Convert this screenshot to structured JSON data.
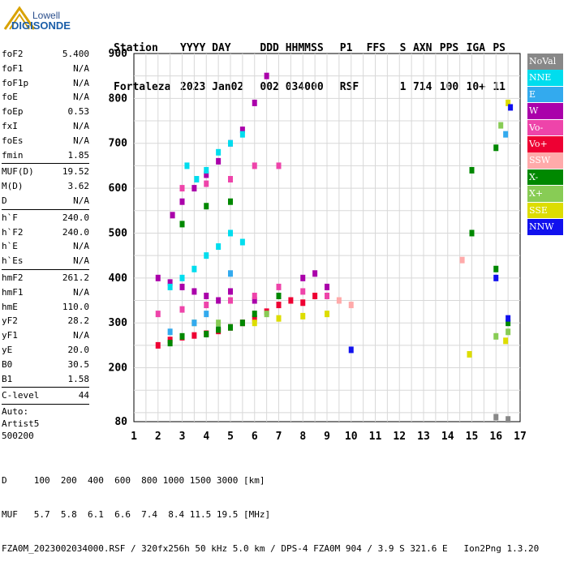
{
  "logo": {
    "line1": "Lowell",
    "line2": "DIGISONDE"
  },
  "header": {
    "row1": [
      "Station",
      "YYYY DAY",
      "DDD HHMMSS",
      "P1",
      "FFS",
      "S",
      "AXN",
      "PPS",
      "IGA",
      "PS"
    ],
    "row2": [
      "Fortaleza",
      "2023 Jan02",
      "002 034000",
      "RSF",
      "",
      "1",
      "714",
      "100",
      "10+",
      "11"
    ]
  },
  "params": {
    "group1": [
      {
        "label": "foF2",
        "value": "5.400"
      },
      {
        "label": "foF1",
        "value": "N/A"
      },
      {
        "label": "foF1p",
        "value": "N/A"
      },
      {
        "label": "foE",
        "value": "N/A"
      },
      {
        "label": "foEp",
        "value": "0.53"
      },
      {
        "label": "fxI",
        "value": "N/A"
      },
      {
        "label": "foEs",
        "value": "N/A"
      },
      {
        "label": "fmin",
        "value": "1.85"
      }
    ],
    "group2": [
      {
        "label": "MUF(D)",
        "value": "19.52"
      },
      {
        "label": "M(D)",
        "value": "3.62"
      },
      {
        "label": "D",
        "value": "N/A"
      }
    ],
    "group3": [
      {
        "label": "h`F",
        "value": "240.0"
      },
      {
        "label": "h`F2",
        "value": "240.0"
      },
      {
        "label": "h`E",
        "value": "N/A"
      },
      {
        "label": "h`Es",
        "value": "N/A"
      }
    ],
    "group4": [
      {
        "label": "hmF2",
        "value": "261.2"
      },
      {
        "label": "hmF1",
        "value": "N/A"
      },
      {
        "label": "hmE",
        "value": "110.0"
      },
      {
        "label": "yF2",
        "value": "28.2"
      },
      {
        "label": "yF1",
        "value": "N/A"
      },
      {
        "label": "yE",
        "value": "20.0"
      },
      {
        "label": "B0",
        "value": "30.5"
      },
      {
        "label": "B1",
        "value": "1.58"
      }
    ],
    "group5": [
      {
        "label": "C-level",
        "value": "44"
      }
    ],
    "auto_lines": [
      "Auto:",
      "Artist5",
      "500200"
    ]
  },
  "legend": [
    {
      "label": "NoVal",
      "color": "#888888"
    },
    {
      "label": "NNE",
      "color": "#00ddee"
    },
    {
      "label": "E",
      "color": "#33aaee"
    },
    {
      "label": "W",
      "color": "#aa00aa"
    },
    {
      "label": "Vo-",
      "color": "#ee44aa"
    },
    {
      "label": "Vo+",
      "color": "#ee0033"
    },
    {
      "label": "SSW",
      "color": "#ffaaaa"
    },
    {
      "label": "X-",
      "color": "#008800"
    },
    {
      "label": "X+",
      "color": "#88cc55"
    },
    {
      "label": "SSE",
      "color": "#dddd00"
    },
    {
      "label": "NNW",
      "color": "#1111ee"
    }
  ],
  "bottom": {
    "line1": "D     100  200  400  600  800 1000 1500 3000 [km]",
    "line2": "MUF   5.7  5.8  6.1  6.6  7.4  8.4 11.5 19.5 [MHz]",
    "line3": "FZA0M_2023002034000.RSF / 320fx256h 50 kHz 5.0 km / DPS-4 FZA0M 904 / 3.9 S 321.6 E   Ion2Png 1.3.20"
  },
  "chart_data": {
    "type": "scatter",
    "title": "",
    "xlabel": "",
    "ylabel": "",
    "xlim": [
      1,
      17
    ],
    "ylim": [
      80,
      900
    ],
    "x_ticks": [
      1,
      2,
      3,
      4,
      5,
      6,
      7,
      8,
      9,
      10,
      11,
      12,
      13,
      14,
      15,
      16,
      17
    ],
    "y_ticks": [
      80,
      200,
      300,
      400,
      500,
      600,
      700,
      800,
      900
    ],
    "grid": true,
    "series": [
      {
        "name": "Vo+",
        "color": "#ee0033",
        "points": [
          [
            2.0,
            250
          ],
          [
            2.5,
            262
          ],
          [
            3.0,
            268
          ],
          [
            3.5,
            272
          ],
          [
            4.0,
            276
          ],
          [
            4.5,
            282
          ],
          [
            5.0,
            290
          ],
          [
            5.5,
            300
          ],
          [
            6.0,
            310
          ],
          [
            6.5,
            325
          ],
          [
            7.0,
            340
          ],
          [
            7.5,
            350
          ],
          [
            8.0,
            345
          ],
          [
            8.5,
            360
          ]
        ]
      },
      {
        "name": "W",
        "color": "#aa00aa",
        "points": [
          [
            2.0,
            400
          ],
          [
            2.5,
            390
          ],
          [
            3.0,
            380
          ],
          [
            3.5,
            370
          ],
          [
            4.0,
            360
          ],
          [
            4.5,
            350
          ],
          [
            5.0,
            370
          ],
          [
            6.0,
            350
          ],
          [
            7.0,
            360
          ],
          [
            8.0,
            400
          ],
          [
            8.5,
            410
          ],
          [
            9.0,
            380
          ],
          [
            2.6,
            540
          ],
          [
            3.0,
            570
          ],
          [
            3.5,
            600
          ],
          [
            4.0,
            630
          ],
          [
            4.5,
            660
          ],
          [
            5.0,
            700
          ],
          [
            5.5,
            730
          ],
          [
            6.0,
            790
          ],
          [
            6.5,
            850
          ]
        ]
      },
      {
        "name": "NNE",
        "color": "#00ddee",
        "points": [
          [
            2.5,
            380
          ],
          [
            3.0,
            400
          ],
          [
            3.5,
            420
          ],
          [
            4.0,
            450
          ],
          [
            4.5,
            470
          ],
          [
            5.0,
            500
          ],
          [
            5.5,
            480
          ],
          [
            3.2,
            650
          ],
          [
            3.6,
            620
          ],
          [
            4.0,
            640
          ],
          [
            4.5,
            680
          ],
          [
            5.0,
            700
          ],
          [
            5.5,
            720
          ]
        ]
      },
      {
        "name": "Vo-",
        "color": "#ee44aa",
        "points": [
          [
            2.0,
            320
          ],
          [
            3.0,
            330
          ],
          [
            4.0,
            340
          ],
          [
            5.0,
            350
          ],
          [
            6.0,
            360
          ],
          [
            7.0,
            380
          ],
          [
            8.0,
            370
          ],
          [
            9.0,
            360
          ],
          [
            3.0,
            600
          ],
          [
            4.0,
            610
          ],
          [
            5.0,
            620
          ],
          [
            6.0,
            650
          ],
          [
            7.0,
            650
          ]
        ]
      },
      {
        "name": "X-",
        "color": "#008800",
        "points": [
          [
            2.5,
            255
          ],
          [
            3.0,
            270
          ],
          [
            4.0,
            275
          ],
          [
            4.5,
            285
          ],
          [
            5.0,
            290
          ],
          [
            5.5,
            300
          ],
          [
            6.0,
            320
          ],
          [
            7.0,
            360
          ],
          [
            3.0,
            520
          ],
          [
            4.0,
            560
          ],
          [
            5.0,
            570
          ],
          [
            15.0,
            640
          ],
          [
            15.0,
            500
          ],
          [
            16.0,
            690
          ],
          [
            16.5,
            300
          ],
          [
            16.0,
            420
          ]
        ]
      },
      {
        "name": "X+",
        "color": "#88cc55",
        "points": [
          [
            3.5,
            300
          ],
          [
            4.5,
            300
          ],
          [
            6.5,
            320
          ],
          [
            16.0,
            270
          ],
          [
            16.5,
            280
          ],
          [
            16.2,
            740
          ]
        ]
      },
      {
        "name": "SSE",
        "color": "#dddd00",
        "points": [
          [
            6.0,
            300
          ],
          [
            7.0,
            310
          ],
          [
            8.0,
            315
          ],
          [
            9.0,
            320
          ],
          [
            14.9,
            230
          ],
          [
            16.4,
            260
          ],
          [
            16.5,
            790
          ]
        ]
      },
      {
        "name": "E",
        "color": "#33aaee",
        "points": [
          [
            2.5,
            280
          ],
          [
            3.5,
            300
          ],
          [
            4.0,
            320
          ],
          [
            5.0,
            410
          ],
          [
            16.4,
            720
          ]
        ]
      },
      {
        "name": "NNW",
        "color": "#1111ee",
        "points": [
          [
            10.0,
            240
          ],
          [
            16.0,
            400
          ],
          [
            16.5,
            310
          ],
          [
            16.6,
            780
          ]
        ]
      },
      {
        "name": "SSW",
        "color": "#ffaaaa",
        "points": [
          [
            9.5,
            350
          ],
          [
            10.0,
            340
          ],
          [
            14.6,
            440
          ]
        ]
      },
      {
        "name": "NoVal",
        "color": "#888888",
        "points": [
          [
            16.0,
            90
          ],
          [
            16.5,
            85
          ]
        ]
      }
    ]
  }
}
